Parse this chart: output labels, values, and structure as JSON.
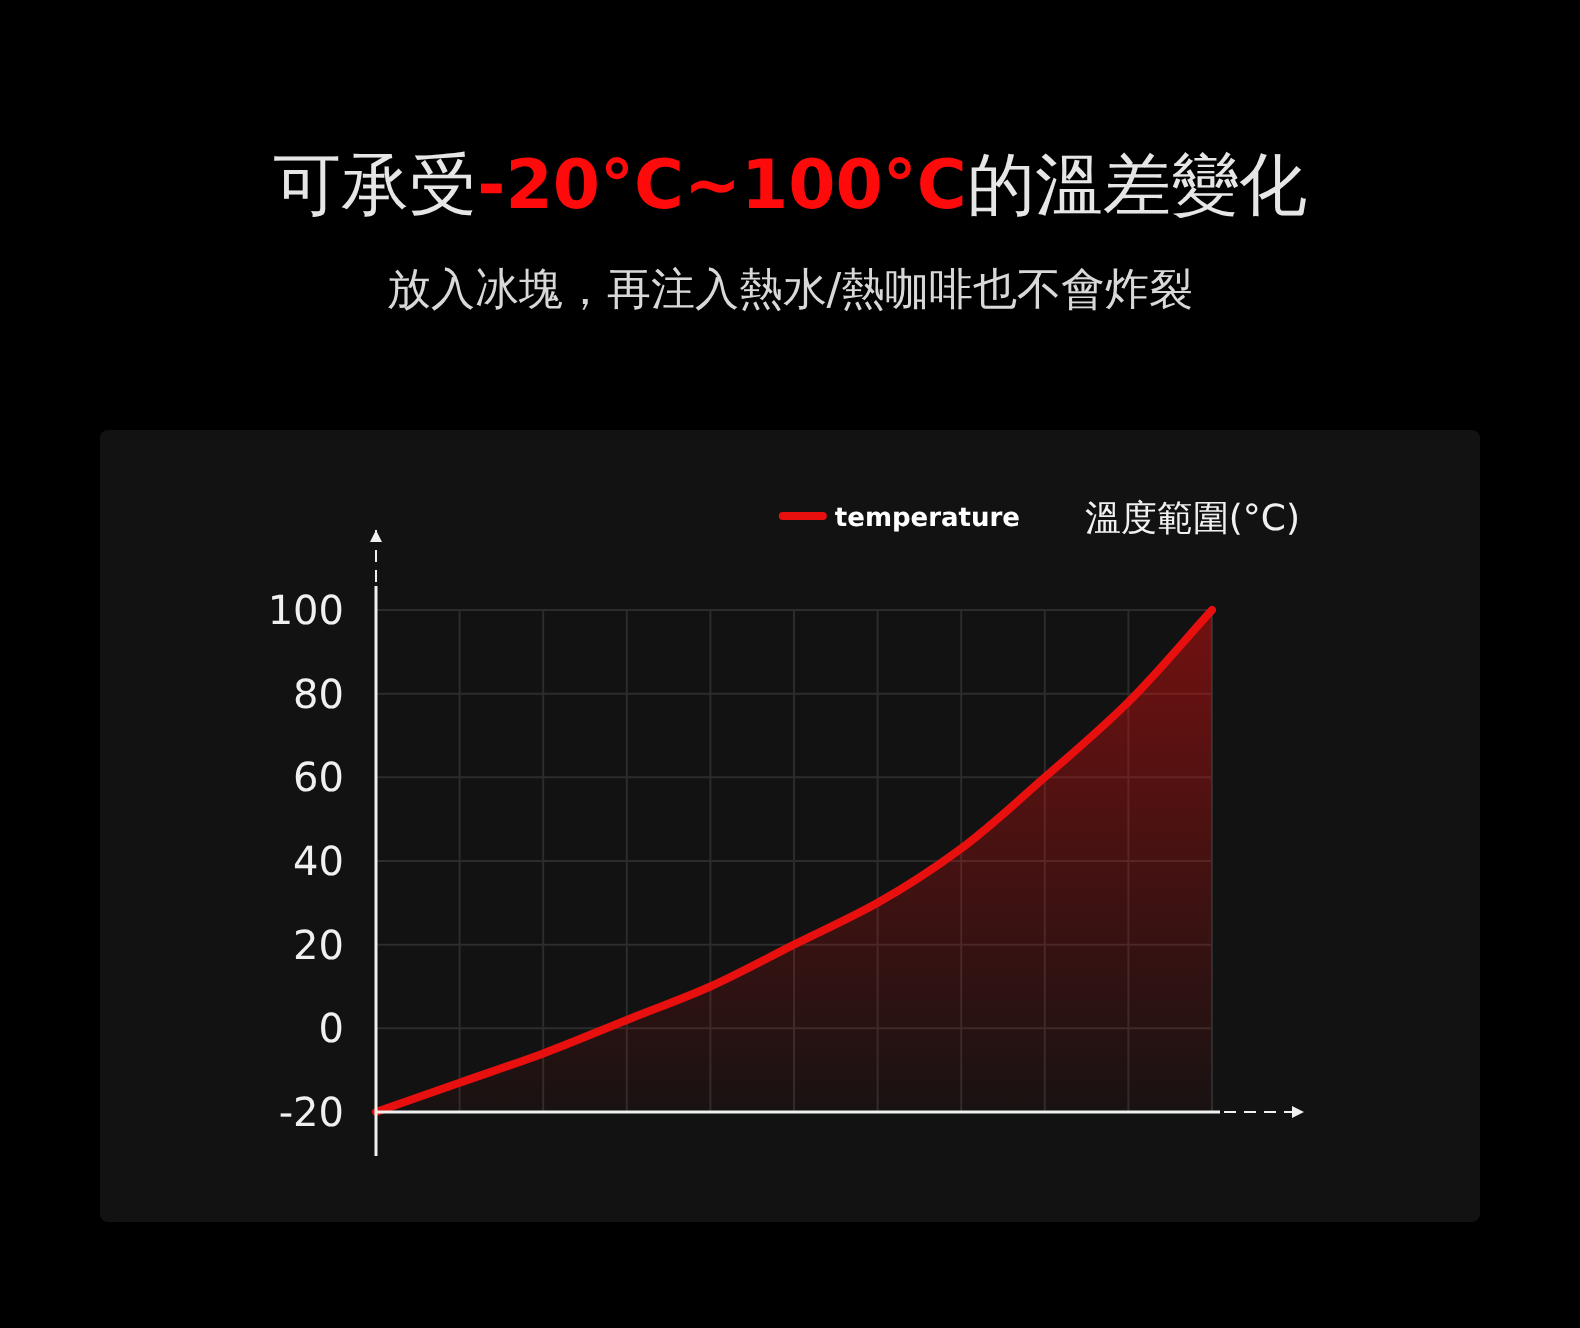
{
  "chart_data": {
    "type": "line",
    "title": "可承受**-20°C~100°C**的溫差變化",
    "subtitle": "放入冰塊，再注入熱水/熱咖啡也不會炸裂",
    "ylabel": "溫度範圍(°C)",
    "categories": [
      null,
      null,
      null,
      null,
      null,
      null,
      null,
      null,
      null,
      null,
      null
    ],
    "series": [
      {
        "name": "temperature",
        "color": "#e8100f",
        "values": [
          -20,
          -13,
          -6,
          2,
          10,
          20,
          30,
          43,
          60,
          78,
          100
        ]
      }
    ],
    "ylim": [
      -20,
      100
    ],
    "yticks": [
      -20,
      0,
      20,
      40,
      60,
      80,
      100
    ],
    "grid": true,
    "legend": "top right",
    "marker": "none",
    "line_style": "solid"
  }
}
